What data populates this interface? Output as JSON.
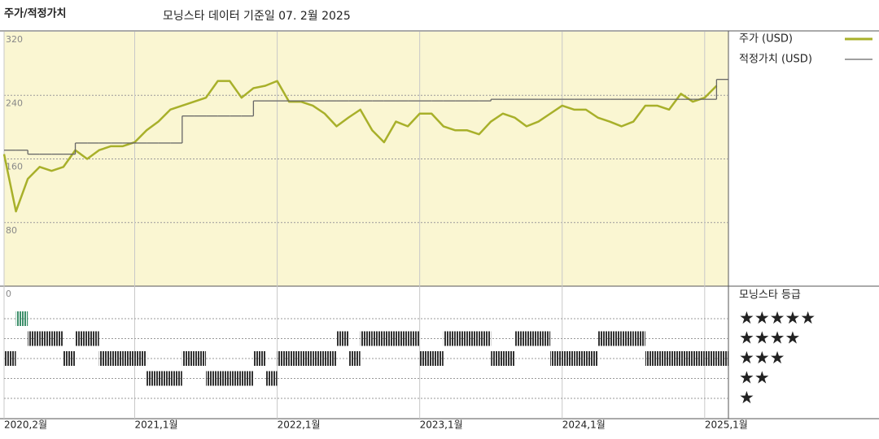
{
  "chart_data": [
    {
      "type": "line",
      "title": "주가/적정가치",
      "subtitle": "모닝스타 데이터 기준일 07. 2월 2025",
      "x": [
        "2020-02",
        "2020-03",
        "2020-04",
        "2020-05",
        "2020-06",
        "2020-07",
        "2020-08",
        "2020-09",
        "2020-10",
        "2020-11",
        "2020-12",
        "2021-01",
        "2021-02",
        "2021-03",
        "2021-04",
        "2021-05",
        "2021-06",
        "2021-07",
        "2021-08",
        "2021-09",
        "2021-10",
        "2021-11",
        "2021-12",
        "2022-01",
        "2022-02",
        "2022-03",
        "2022-04",
        "2022-05",
        "2022-06",
        "2022-07",
        "2022-08",
        "2022-09",
        "2022-10",
        "2022-11",
        "2022-12",
        "2023-01",
        "2023-02",
        "2023-03",
        "2023-04",
        "2023-05",
        "2023-06",
        "2023-07",
        "2023-08",
        "2023-09",
        "2023-10",
        "2023-11",
        "2023-12",
        "2024-01",
        "2024-02",
        "2024-03",
        "2024-04",
        "2024-05",
        "2024-06",
        "2024-07",
        "2024-08",
        "2024-09",
        "2024-10",
        "2024-11",
        "2024-12",
        "2025-01",
        "2025-02"
      ],
      "series": [
        {
          "name": "주가 (USD)",
          "color": "#a8b02a",
          "style": "line",
          "values": [
            166,
            94,
            135,
            150,
            145,
            150,
            171,
            160,
            171,
            176,
            176,
            181,
            196,
            207,
            222,
            227,
            232,
            237,
            258,
            258,
            237,
            249,
            252,
            258,
            232,
            232,
            227,
            217,
            201,
            212,
            222,
            196,
            181,
            207,
            201,
            217,
            217,
            201,
            196,
            196,
            191,
            207,
            217,
            212,
            201,
            207,
            217,
            227,
            222,
            222,
            212,
            207,
            201,
            207,
            227,
            227,
            222,
            242,
            232,
            237,
            252
          ]
        },
        {
          "name": "적정가치 (USD)",
          "color": "#666666",
          "style": "step",
          "values": [
            171,
            171,
            166,
            166,
            166,
            166,
            180,
            180,
            180,
            180,
            180,
            180,
            180,
            180,
            180,
            214,
            214,
            214,
            214,
            214,
            214,
            233,
            233,
            233,
            233,
            233,
            233,
            233,
            233,
            233,
            233,
            233,
            233,
            233,
            233,
            233,
            233,
            233,
            233,
            233,
            233,
            235,
            235,
            235,
            235,
            235,
            235,
            235,
            235,
            235,
            235,
            235,
            235,
            235,
            235,
            235,
            235,
            235,
            235,
            235,
            260
          ]
        }
      ],
      "xlim": [
        "2020-02",
        "2025-03"
      ],
      "xticks": [
        {
          "value": "2020-02",
          "label": "2020,2월"
        },
        {
          "value": "2021-01",
          "label": "2021,1월"
        },
        {
          "value": "2022-01",
          "label": "2022,1월"
        },
        {
          "value": "2023-01",
          "label": "2023,1월"
        },
        {
          "value": "2024-01",
          "label": "2024,1월"
        },
        {
          "value": "2025-01",
          "label": "2025,1월"
        }
      ],
      "ylim": [
        0,
        320
      ],
      "yticks": [
        0,
        80,
        160,
        240,
        320
      ],
      "grid": true,
      "background": "#faf6d2"
    },
    {
      "type": "rating",
      "title": "모닝스타 등급",
      "x": [
        "2020-02",
        "2020-03",
        "2020-04",
        "2020-05",
        "2020-06",
        "2020-07",
        "2020-08",
        "2020-09",
        "2020-10",
        "2020-11",
        "2020-12",
        "2021-01",
        "2021-02",
        "2021-03",
        "2021-04",
        "2021-05",
        "2021-06",
        "2021-07",
        "2021-08",
        "2021-09",
        "2021-10",
        "2021-11",
        "2021-12",
        "2022-01",
        "2022-02",
        "2022-03",
        "2022-04",
        "2022-05",
        "2022-06",
        "2022-07",
        "2022-08",
        "2022-09",
        "2022-10",
        "2022-11",
        "2022-12",
        "2023-01",
        "2023-02",
        "2023-03",
        "2023-04",
        "2023-05",
        "2023-06",
        "2023-07",
        "2023-08",
        "2023-09",
        "2023-10",
        "2023-11",
        "2023-12",
        "2024-01",
        "2024-02",
        "2024-03",
        "2024-04",
        "2024-05",
        "2024-06",
        "2024-07",
        "2024-08",
        "2024-09",
        "2024-10",
        "2024-11",
        "2024-12",
        "2025-01",
        "2025-02"
      ],
      "values": [
        3,
        5,
        4,
        4,
        4,
        3,
        4,
        4,
        3,
        3,
        3,
        3,
        2,
        2,
        2,
        3,
        3,
        2,
        2,
        2,
        2,
        3,
        2,
        3,
        3,
        3,
        3,
        3,
        4,
        3,
        4,
        4,
        4,
        4,
        4,
        3,
        3,
        4,
        4,
        4,
        4,
        3,
        3,
        4,
        4,
        4,
        3,
        3,
        3,
        3,
        4,
        4,
        4,
        4,
        3,
        3,
        3,
        3,
        3,
        3,
        3
      ],
      "levels": [
        {
          "value": 5,
          "label": "★★★★★",
          "color": "#3d8f6a"
        },
        {
          "value": 4,
          "label": "★★★★",
          "color": "#333333"
        },
        {
          "value": 3,
          "label": "★★★",
          "color": "#333333"
        },
        {
          "value": 2,
          "label": "★★",
          "color": "#333333"
        },
        {
          "value": 1,
          "label": "★",
          "color": "#333333"
        }
      ]
    }
  ]
}
